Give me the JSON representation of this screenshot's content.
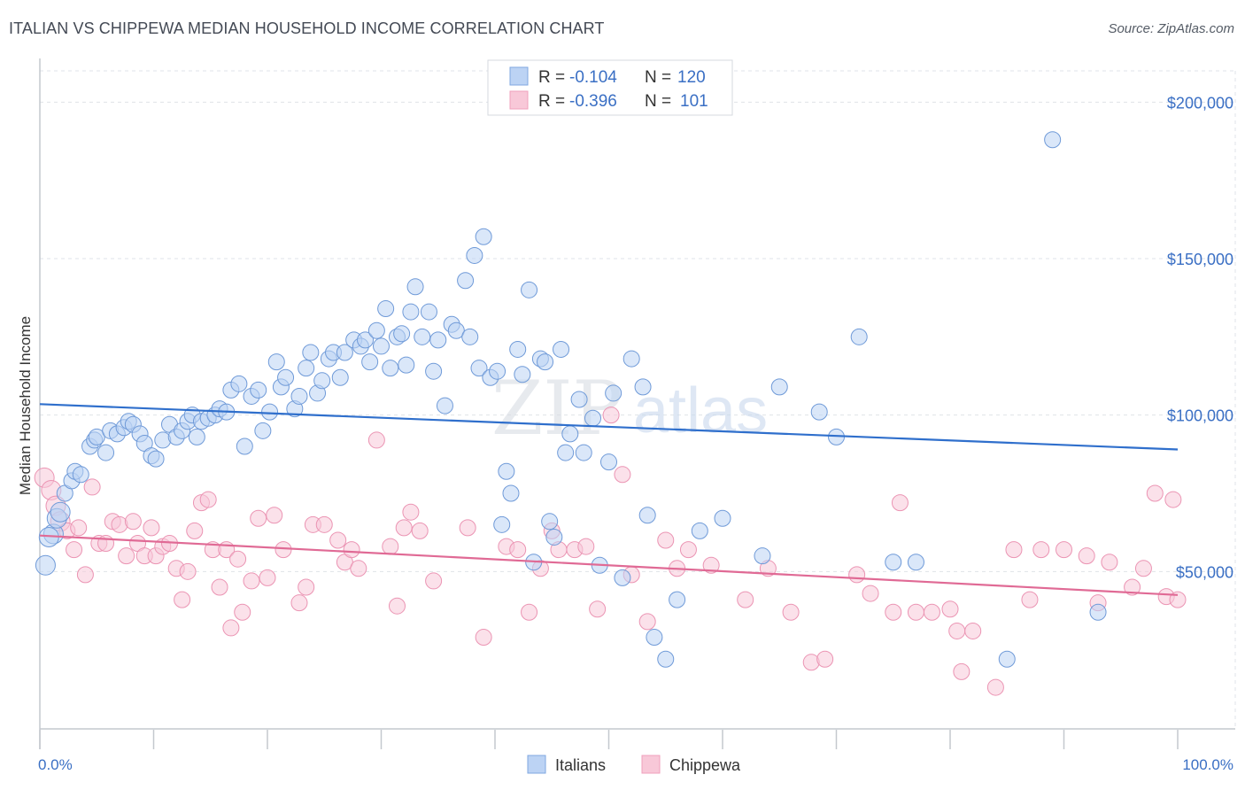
{
  "title": "ITALIAN VS CHIPPEWA MEDIAN HOUSEHOLD INCOME CORRELATION CHART",
  "source": "Source: ZipAtlas.com",
  "watermark": {
    "zip": "ZIP",
    "atlas": "atlas"
  },
  "colors": {
    "italians": "#7fa7e0",
    "italians_line": "#2f6fcc",
    "chippewa": "#f0a0bc",
    "chippewa_line": "#e06a95",
    "axis_text": "#3a6fc4"
  },
  "legend": {
    "rows": [
      {
        "r_label": "R =",
        "r_value": "-0.104",
        "n_label": "N =",
        "n_value": "120"
      },
      {
        "r_label": "R =",
        "r_value": "-0.396",
        "n_label": "N =",
        "n_value": "101"
      }
    ]
  },
  "bottom_legend": {
    "italians": "Italians",
    "chippewa": "Chippewa"
  },
  "chart_data": {
    "type": "scatter",
    "title": "ITALIAN VS CHIPPEWA MEDIAN HOUSEHOLD INCOME CORRELATION CHART",
    "xlabel": "",
    "ylabel": "Median Household Income",
    "xlim": [
      0,
      100
    ],
    "ylim": [
      0,
      210000
    ],
    "x_tick_labels": [
      "0.0%",
      "100.0%"
    ],
    "y_ticks": [
      50000,
      100000,
      150000,
      200000
    ],
    "y_tick_labels": [
      "$50,000",
      "$100,000",
      "$150,000",
      "$200,000"
    ],
    "grid": true,
    "legend_position": "top-center",
    "series": [
      {
        "name": "Italians",
        "r": -0.104,
        "n": 120,
        "trend": {
          "x": [
            0,
            100
          ],
          "y": [
            103500,
            89000
          ]
        },
        "points": [
          [
            0.5,
            52000
          ],
          [
            1.2,
            62000
          ],
          [
            1.5,
            67000
          ],
          [
            1.8,
            69000
          ],
          [
            2.2,
            75000
          ],
          [
            2.8,
            79000
          ],
          [
            3.1,
            82000
          ],
          [
            3.6,
            81000
          ],
          [
            4.4,
            90000
          ],
          [
            4.8,
            92000
          ],
          [
            5.0,
            93000
          ],
          [
            5.8,
            88000
          ],
          [
            6.2,
            95000
          ],
          [
            6.8,
            94000
          ],
          [
            7.4,
            96000
          ],
          [
            7.8,
            98000
          ],
          [
            8.2,
            97000
          ],
          [
            8.8,
            94000
          ],
          [
            9.2,
            91000
          ],
          [
            9.8,
            87000
          ],
          [
            10.2,
            86000
          ],
          [
            10.8,
            92000
          ],
          [
            11.4,
            97000
          ],
          [
            12.0,
            93000
          ],
          [
            12.5,
            95000
          ],
          [
            13.0,
            98000
          ],
          [
            13.4,
            100000
          ],
          [
            13.8,
            93000
          ],
          [
            14.2,
            98000
          ],
          [
            14.8,
            99000
          ],
          [
            15.4,
            100000
          ],
          [
            15.8,
            102000
          ],
          [
            16.4,
            101000
          ],
          [
            16.8,
            108000
          ],
          [
            17.5,
            110000
          ],
          [
            18.0,
            90000
          ],
          [
            18.6,
            106000
          ],
          [
            19.2,
            108000
          ],
          [
            19.6,
            95000
          ],
          [
            20.2,
            101000
          ],
          [
            20.8,
            117000
          ],
          [
            21.2,
            109000
          ],
          [
            21.6,
            112000
          ],
          [
            22.4,
            102000
          ],
          [
            22.8,
            106000
          ],
          [
            23.4,
            115000
          ],
          [
            23.8,
            120000
          ],
          [
            24.4,
            107000
          ],
          [
            24.8,
            111000
          ],
          [
            25.4,
            118000
          ],
          [
            25.8,
            120000
          ],
          [
            26.4,
            112000
          ],
          [
            26.8,
            120000
          ],
          [
            27.6,
            124000
          ],
          [
            28.2,
            122000
          ],
          [
            28.6,
            124000
          ],
          [
            29.0,
            117000
          ],
          [
            29.6,
            127000
          ],
          [
            30.0,
            122000
          ],
          [
            30.4,
            134000
          ],
          [
            30.8,
            115000
          ],
          [
            31.4,
            125000
          ],
          [
            31.8,
            126000
          ],
          [
            32.2,
            116000
          ],
          [
            32.6,
            133000
          ],
          [
            33.0,
            141000
          ],
          [
            33.6,
            125000
          ],
          [
            34.2,
            133000
          ],
          [
            34.6,
            114000
          ],
          [
            35.0,
            124000
          ],
          [
            35.6,
            103000
          ],
          [
            36.2,
            129000
          ],
          [
            36.6,
            127000
          ],
          [
            37.4,
            143000
          ],
          [
            37.8,
            125000
          ],
          [
            38.2,
            151000
          ],
          [
            38.6,
            115000
          ],
          [
            39.0,
            157000
          ],
          [
            39.6,
            112000
          ],
          [
            40.2,
            114000
          ],
          [
            40.6,
            65000
          ],
          [
            41.0,
            82000
          ],
          [
            41.4,
            75000
          ],
          [
            42.0,
            121000
          ],
          [
            42.4,
            113000
          ],
          [
            43.0,
            140000
          ],
          [
            43.4,
            53000
          ],
          [
            44.0,
            118000
          ],
          [
            44.4,
            117000
          ],
          [
            44.8,
            66000
          ],
          [
            45.2,
            61000
          ],
          [
            45.8,
            121000
          ],
          [
            46.2,
            88000
          ],
          [
            46.6,
            94000
          ],
          [
            47.4,
            105000
          ],
          [
            47.8,
            88000
          ],
          [
            48.6,
            99000
          ],
          [
            49.2,
            52000
          ],
          [
            50.0,
            85000
          ],
          [
            50.4,
            107000
          ],
          [
            51.2,
            48000
          ],
          [
            52.0,
            118000
          ],
          [
            53.0,
            109000
          ],
          [
            53.4,
            68000
          ],
          [
            54.0,
            29000
          ],
          [
            55.0,
            22000
          ],
          [
            56.0,
            41000
          ],
          [
            58.0,
            63000
          ],
          [
            60.0,
            67000
          ],
          [
            63.5,
            55000
          ],
          [
            65.0,
            109000
          ],
          [
            68.5,
            101000
          ],
          [
            70.0,
            93000
          ],
          [
            72.0,
            125000
          ],
          [
            75.0,
            53000
          ],
          [
            77.0,
            53000
          ],
          [
            85.0,
            22000
          ],
          [
            89.0,
            188000
          ],
          [
            93.0,
            37000
          ],
          [
            0.8,
            61000
          ]
        ]
      },
      {
        "name": "Chippewa",
        "r": -0.396,
        "n": 101,
        "trend": {
          "x": [
            0,
            100
          ],
          "y": [
            61500,
            42500
          ]
        },
        "points": [
          [
            0.4,
            80000
          ],
          [
            1.0,
            76000
          ],
          [
            1.4,
            71000
          ],
          [
            1.8,
            66000
          ],
          [
            2.4,
            63000
          ],
          [
            3.0,
            57000
          ],
          [
            3.4,
            64000
          ],
          [
            4.0,
            49000
          ],
          [
            4.6,
            77000
          ],
          [
            5.2,
            59000
          ],
          [
            5.8,
            59000
          ],
          [
            6.4,
            66000
          ],
          [
            7.0,
            65000
          ],
          [
            7.6,
            55000
          ],
          [
            8.2,
            66000
          ],
          [
            8.6,
            59000
          ],
          [
            9.2,
            55000
          ],
          [
            9.8,
            64000
          ],
          [
            10.2,
            55000
          ],
          [
            10.8,
            58000
          ],
          [
            11.4,
            59000
          ],
          [
            12.0,
            51000
          ],
          [
            12.5,
            41000
          ],
          [
            13.0,
            50000
          ],
          [
            13.6,
            63000
          ],
          [
            14.2,
            72000
          ],
          [
            14.8,
            73000
          ],
          [
            15.2,
            57000
          ],
          [
            15.8,
            45000
          ],
          [
            16.4,
            57000
          ],
          [
            16.8,
            32000
          ],
          [
            17.4,
            54000
          ],
          [
            17.8,
            37000
          ],
          [
            18.6,
            47000
          ],
          [
            19.2,
            67000
          ],
          [
            20.0,
            48000
          ],
          [
            20.6,
            68000
          ],
          [
            21.4,
            57000
          ],
          [
            22.8,
            40000
          ],
          [
            23.4,
            45000
          ],
          [
            24.0,
            65000
          ],
          [
            25.0,
            65000
          ],
          [
            26.2,
            60000
          ],
          [
            26.8,
            53000
          ],
          [
            27.4,
            57000
          ],
          [
            28.0,
            51000
          ],
          [
            29.6,
            92000
          ],
          [
            30.8,
            58000
          ],
          [
            31.4,
            39000
          ],
          [
            32.0,
            64000
          ],
          [
            32.6,
            69000
          ],
          [
            33.4,
            63000
          ],
          [
            34.6,
            47000
          ],
          [
            37.6,
            64000
          ],
          [
            39.0,
            29000
          ],
          [
            41.0,
            58000
          ],
          [
            42.0,
            57000
          ],
          [
            43.0,
            37000
          ],
          [
            44.0,
            51000
          ],
          [
            45.0,
            63000
          ],
          [
            45.6,
            57000
          ],
          [
            47.0,
            57000
          ],
          [
            48.0,
            58000
          ],
          [
            49.0,
            38000
          ],
          [
            50.2,
            100000
          ],
          [
            51.2,
            81000
          ],
          [
            52.0,
            49000
          ],
          [
            53.4,
            34000
          ],
          [
            55.0,
            60000
          ],
          [
            56.0,
            51000
          ],
          [
            57.0,
            57000
          ],
          [
            59.0,
            52000
          ],
          [
            62.0,
            41000
          ],
          [
            64.0,
            51000
          ],
          [
            66.0,
            37000
          ],
          [
            67.8,
            21000
          ],
          [
            69.0,
            22000
          ],
          [
            71.8,
            49000
          ],
          [
            73.0,
            43000
          ],
          [
            75.0,
            37000
          ],
          [
            75.6,
            72000
          ],
          [
            77.0,
            37000
          ],
          [
            78.4,
            37000
          ],
          [
            80.0,
            38000
          ],
          [
            80.6,
            31000
          ],
          [
            81.0,
            18000
          ],
          [
            82.0,
            31000
          ],
          [
            84.0,
            13000
          ],
          [
            85.6,
            57000
          ],
          [
            87.0,
            41000
          ],
          [
            88.0,
            57000
          ],
          [
            90.0,
            57000
          ],
          [
            92.0,
            55000
          ],
          [
            93.0,
            40000
          ],
          [
            94.0,
            53000
          ],
          [
            96.0,
            45000
          ],
          [
            97.0,
            51000
          ],
          [
            98.0,
            75000
          ],
          [
            99.0,
            42000
          ],
          [
            99.6,
            73000
          ],
          [
            100.0,
            41000
          ]
        ]
      }
    ]
  }
}
